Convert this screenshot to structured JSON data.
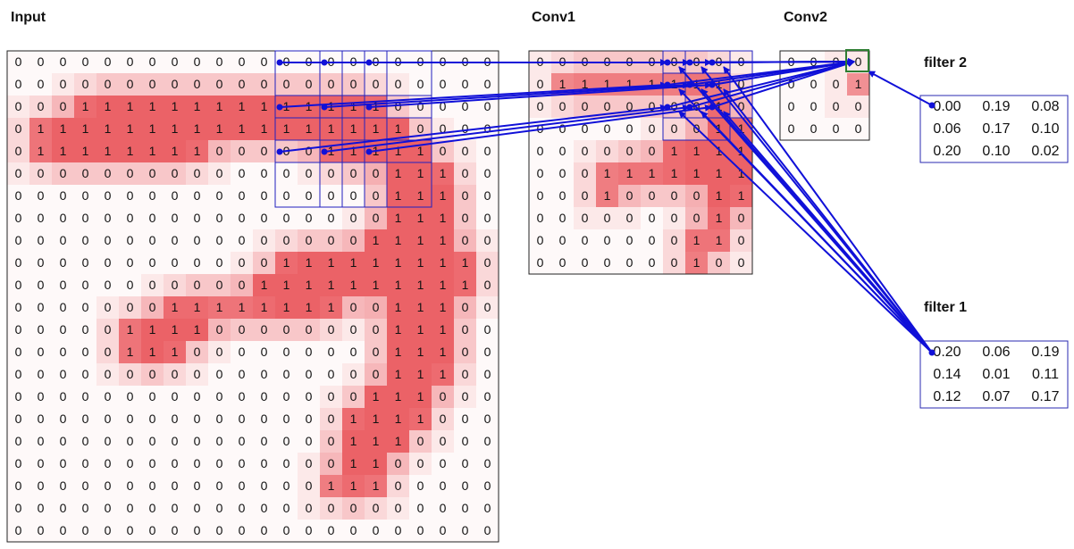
{
  "input": {
    "label": "Input",
    "grid": [
      [
        0,
        0,
        0,
        0,
        0,
        0,
        0,
        0,
        0,
        0,
        0,
        0,
        0,
        0,
        0,
        0,
        0,
        0,
        0,
        0,
        0,
        0
      ],
      [
        0,
        0,
        0,
        0,
        0,
        0,
        0,
        0,
        0,
        0,
        0,
        0,
        0,
        0,
        0,
        0,
        0,
        0,
        0,
        0,
        0,
        0
      ],
      [
        0,
        0,
        0,
        1,
        1,
        1,
        1,
        1,
        1,
        1,
        1,
        1,
        1,
        1,
        1,
        1,
        1,
        0,
        0,
        0,
        0,
        0
      ],
      [
        0,
        1,
        1,
        1,
        1,
        1,
        1,
        1,
        1,
        1,
        1,
        1,
        1,
        1,
        1,
        1,
        1,
        1,
        0,
        0,
        0,
        0
      ],
      [
        0,
        1,
        1,
        1,
        1,
        1,
        1,
        1,
        1,
        0,
        0,
        0,
        0,
        0,
        1,
        1,
        1,
        1,
        1,
        0,
        0,
        0
      ],
      [
        0,
        0,
        0,
        0,
        0,
        0,
        0,
        0,
        0,
        0,
        0,
        0,
        0,
        0,
        0,
        0,
        0,
        1,
        1,
        1,
        0,
        0
      ],
      [
        0,
        0,
        0,
        0,
        0,
        0,
        0,
        0,
        0,
        0,
        0,
        0,
        0,
        0,
        0,
        0,
        0,
        1,
        1,
        1,
        0,
        0
      ],
      [
        0,
        0,
        0,
        0,
        0,
        0,
        0,
        0,
        0,
        0,
        0,
        0,
        0,
        0,
        0,
        0,
        0,
        1,
        1,
        1,
        0,
        0
      ],
      [
        0,
        0,
        0,
        0,
        0,
        0,
        0,
        0,
        0,
        0,
        0,
        0,
        0,
        0,
        0,
        0,
        1,
        1,
        1,
        1,
        0,
        0
      ],
      [
        0,
        0,
        0,
        0,
        0,
        0,
        0,
        0,
        0,
        0,
        0,
        0,
        1,
        1,
        1,
        1,
        1,
        1,
        1,
        1,
        1,
        0
      ],
      [
        0,
        0,
        0,
        0,
        0,
        0,
        0,
        0,
        0,
        0,
        0,
        1,
        1,
        1,
        1,
        1,
        1,
        1,
        1,
        1,
        1,
        0
      ],
      [
        0,
        0,
        0,
        0,
        0,
        0,
        0,
        1,
        1,
        1,
        1,
        1,
        1,
        1,
        1,
        0,
        0,
        1,
        1,
        1,
        0,
        0
      ],
      [
        0,
        0,
        0,
        0,
        0,
        1,
        1,
        1,
        1,
        0,
        0,
        0,
        0,
        0,
        0,
        0,
        0,
        1,
        1,
        1,
        0,
        0
      ],
      [
        0,
        0,
        0,
        0,
        0,
        1,
        1,
        1,
        0,
        0,
        0,
        0,
        0,
        0,
        0,
        0,
        0,
        1,
        1,
        1,
        0,
        0
      ],
      [
        0,
        0,
        0,
        0,
        0,
        0,
        0,
        0,
        0,
        0,
        0,
        0,
        0,
        0,
        0,
        0,
        0,
        1,
        1,
        1,
        0,
        0
      ],
      [
        0,
        0,
        0,
        0,
        0,
        0,
        0,
        0,
        0,
        0,
        0,
        0,
        0,
        0,
        0,
        0,
        1,
        1,
        1,
        0,
        0,
        0
      ],
      [
        0,
        0,
        0,
        0,
        0,
        0,
        0,
        0,
        0,
        0,
        0,
        0,
        0,
        0,
        0,
        1,
        1,
        1,
        1,
        0,
        0,
        0
      ],
      [
        0,
        0,
        0,
        0,
        0,
        0,
        0,
        0,
        0,
        0,
        0,
        0,
        0,
        0,
        0,
        1,
        1,
        1,
        0,
        0,
        0,
        0
      ],
      [
        0,
        0,
        0,
        0,
        0,
        0,
        0,
        0,
        0,
        0,
        0,
        0,
        0,
        0,
        0,
        1,
        1,
        0,
        0,
        0,
        0,
        0
      ],
      [
        0,
        0,
        0,
        0,
        0,
        0,
        0,
        0,
        0,
        0,
        0,
        0,
        0,
        0,
        1,
        1,
        1,
        0,
        0,
        0,
        0,
        0
      ],
      [
        0,
        0,
        0,
        0,
        0,
        0,
        0,
        0,
        0,
        0,
        0,
        0,
        0,
        0,
        0,
        0,
        0,
        0,
        0,
        0,
        0,
        0
      ],
      [
        0,
        0,
        0,
        0,
        0,
        0,
        0,
        0,
        0,
        0,
        0,
        0,
        0,
        0,
        0,
        0,
        0,
        0,
        0,
        0,
        0,
        0
      ]
    ]
  },
  "conv1": {
    "label": "Conv1",
    "grid": [
      [
        0,
        0,
        0,
        0,
        0,
        0,
        0,
        0,
        0,
        0
      ],
      [
        0,
        1,
        1,
        1,
        1,
        1,
        1,
        1,
        1,
        0
      ],
      [
        0,
        0,
        0,
        0,
        0,
        0,
        0,
        0,
        1,
        0
      ],
      [
        0,
        0,
        0,
        0,
        0,
        0,
        0,
        0,
        1,
        1
      ],
      [
        0,
        0,
        0,
        0,
        0,
        0,
        1,
        1,
        1,
        1
      ],
      [
        0,
        0,
        0,
        1,
        1,
        1,
        1,
        1,
        1,
        1
      ],
      [
        0,
        0,
        0,
        1,
        0,
        0,
        0,
        0,
        1,
        1
      ],
      [
        0,
        0,
        0,
        0,
        0,
        0,
        0,
        0,
        1,
        0
      ],
      [
        0,
        0,
        0,
        0,
        0,
        0,
        0,
        1,
        1,
        0
      ],
      [
        0,
        0,
        0,
        0,
        0,
        0,
        0,
        1,
        0,
        0
      ]
    ]
  },
  "conv2": {
    "label": "Conv2",
    "grid": [
      [
        0,
        0,
        0,
        0
      ],
      [
        0,
        0,
        0,
        1
      ],
      [
        0,
        0,
        0,
        0
      ],
      [
        0,
        0,
        0,
        0
      ]
    ]
  },
  "filter2": {
    "label": "filter 2",
    "values": [
      [
        "0.00",
        "0.19",
        "0.08"
      ],
      [
        "0.06",
        "0.17",
        "0.10"
      ],
      [
        "0.20",
        "0.10",
        "0.02"
      ]
    ]
  },
  "filter1": {
    "label": "filter 1",
    "values": [
      [
        "0.20",
        "0.06",
        "0.19"
      ],
      [
        "0.14",
        "0.01",
        "0.11"
      ],
      [
        "0.12",
        "0.07",
        "0.17"
      ]
    ]
  }
}
